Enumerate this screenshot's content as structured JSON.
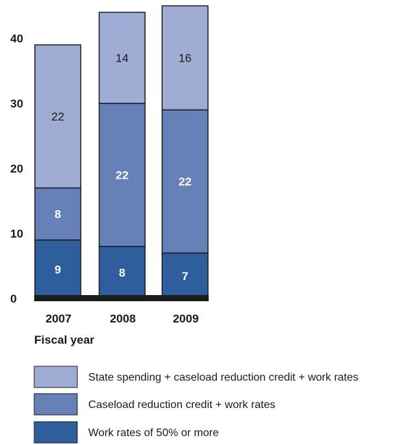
{
  "chart_data": {
    "type": "bar",
    "stacked": true,
    "categories": [
      "2007",
      "2008",
      "2009"
    ],
    "series": [
      {
        "name": "Work rates of 50% or more",
        "values": [
          9,
          8,
          7
        ],
        "color": "#2e5f9c"
      },
      {
        "name": "Caseload reduction credit + work rates",
        "values": [
          8,
          22,
          22
        ],
        "color": "#6680b8"
      },
      {
        "name": "State spending + caseload reduction credit + work rates",
        "values": [
          22,
          14,
          16
        ],
        "color": "#9fadd4"
      }
    ],
    "label_colors": [
      "#ffffff",
      "#ffffff",
      "#1a1a1a"
    ],
    "xlabel": "Fiscal year",
    "ylabel": "",
    "ylim": [
      0,
      40
    ],
    "yticks": [
      0,
      10,
      20,
      30,
      40
    ],
    "grid": false,
    "legend": "bottom"
  }
}
